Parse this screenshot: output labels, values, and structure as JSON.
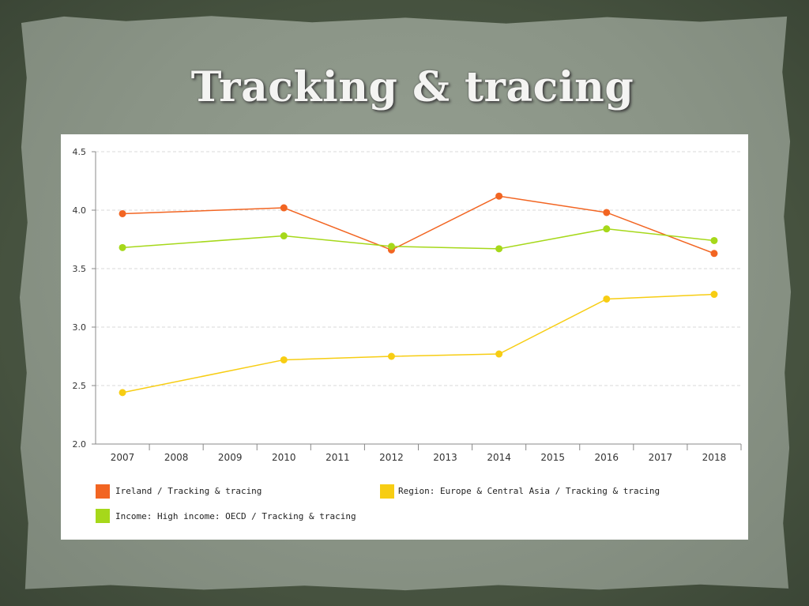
{
  "slide": {
    "title": "Tracking & tracing"
  },
  "colors": {
    "ireland": "#f26522",
    "region": "#f7cd13",
    "income": "#a6d81a",
    "gridline": "#d9d9d9",
    "axis": "#888888"
  },
  "chart_data": {
    "type": "line",
    "x": [
      "2007",
      "2008",
      "2009",
      "2010",
      "2011",
      "2012",
      "2013",
      "2014",
      "2015",
      "2016",
      "2017",
      "2018"
    ],
    "ylim": [
      2.0,
      4.5
    ],
    "yticks": [
      "4.5",
      "4.0",
      "3.5",
      "3.0",
      "2.5",
      "2.0"
    ],
    "grid": true,
    "legend_position": "bottom",
    "series": [
      {
        "name": "Ireland / Tracking & tracing",
        "color_key": "ireland",
        "points": [
          {
            "x": "2007",
            "y": 3.97
          },
          {
            "x": "2010",
            "y": 4.02
          },
          {
            "x": "2012",
            "y": 3.66
          },
          {
            "x": "2014",
            "y": 4.12
          },
          {
            "x": "2016",
            "y": 3.98
          },
          {
            "x": "2018",
            "y": 3.63
          }
        ]
      },
      {
        "name": "Region: Europe & Central Asia / Tracking & tracing",
        "color_key": "region",
        "points": [
          {
            "x": "2007",
            "y": 2.44
          },
          {
            "x": "2010",
            "y": 2.72
          },
          {
            "x": "2012",
            "y": 2.75
          },
          {
            "x": "2014",
            "y": 2.77
          },
          {
            "x": "2016",
            "y": 3.24
          },
          {
            "x": "2018",
            "y": 3.28
          }
        ]
      },
      {
        "name": "Income: High income: OECD / Tracking & tracing",
        "color_key": "income",
        "points": [
          {
            "x": "2007",
            "y": 3.68
          },
          {
            "x": "2010",
            "y": 3.78
          },
          {
            "x": "2012",
            "y": 3.69
          },
          {
            "x": "2014",
            "y": 3.67
          },
          {
            "x": "2016",
            "y": 3.84
          },
          {
            "x": "2018",
            "y": 3.74
          }
        ]
      }
    ]
  }
}
